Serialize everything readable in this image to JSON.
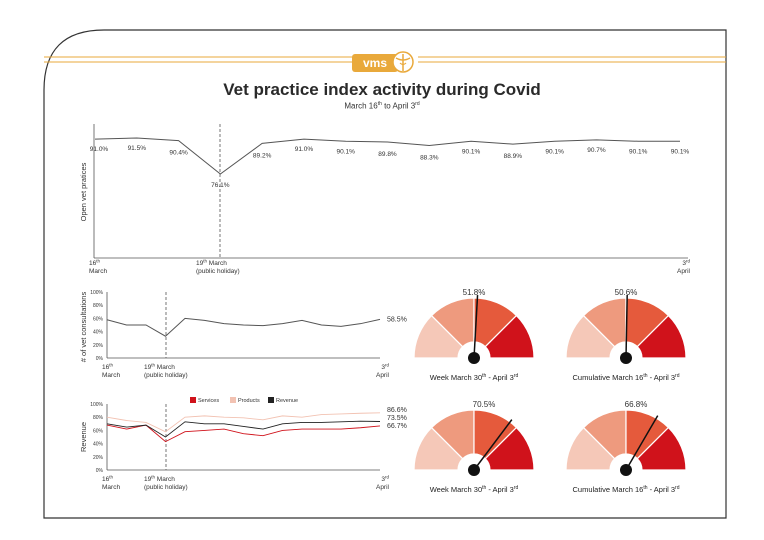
{
  "logo": {
    "text": "vms"
  },
  "title": "Vet practice index activity during Covid",
  "subtitle": {
    "main": "March 16",
    "sup1": "th",
    "mid": " to April 3",
    "sup2": "rd"
  },
  "colors": {
    "gold": "#e9a93b",
    "line": "#555555",
    "services": "#d0121b",
    "products": "#f2c2b2",
    "revenue": "#222222",
    "gauge_light": "#f5c8b8",
    "gauge_mid": "#ee9a7e",
    "gauge_dark": "#e55a3c",
    "gauge_red": "#d0121b"
  },
  "chart_data": [
    {
      "type": "line",
      "ylabel": "Open vet pratices",
      "values": [
        91.0,
        91.5,
        90.4,
        76.1,
        89.2,
        91.0,
        90.1,
        89.8,
        88.3,
        90.1,
        88.9,
        90.1,
        90.7,
        90.1,
        90.1
      ],
      "data_labels": [
        "91.0%",
        "91.5%",
        "90.4%",
        "76.1%",
        "89.2%",
        "91.0%",
        "90.1%",
        "89.8%",
        "88.3%",
        "90.1%",
        "88.9%",
        "90.1%",
        "90.7%",
        "90.1%",
        "90.1%"
      ],
      "ticks": [
        {
          "day": "16",
          "sup": "th",
          "month": "March"
        },
        {
          "day": "19",
          "sup": "th",
          "month": " March",
          "note": "(public holiday)"
        },
        {
          "day": "3",
          "sup": "rd",
          "month": "April"
        }
      ]
    },
    {
      "type": "line",
      "ylabel": "# of vet consultations",
      "yticks": [
        "100%",
        "80%",
        "60%",
        "40%",
        "20%",
        "0%"
      ],
      "ylim": [
        0,
        100
      ],
      "values": [
        58,
        50,
        50,
        33,
        60,
        57,
        52,
        50,
        49,
        52,
        57,
        50,
        48,
        52,
        58.5
      ],
      "end_label": "58.5%"
    },
    {
      "type": "line",
      "ylabel": "Revenue",
      "yticks": [
        "100%",
        "80%",
        "60%",
        "40%",
        "20%",
        "0%"
      ],
      "ylim": [
        0,
        100
      ],
      "legend": [
        "Services",
        "Products",
        "Revenue"
      ],
      "series": [
        {
          "name": "Services",
          "values": [
            68,
            62,
            68,
            43,
            58,
            60,
            62,
            55,
            52,
            60,
            62,
            62,
            62,
            64,
            66.7
          ]
        },
        {
          "name": "Products",
          "values": [
            80,
            75,
            72,
            58,
            80,
            82,
            80,
            79,
            76,
            82,
            80,
            84,
            85,
            86,
            86.6
          ]
        },
        {
          "name": "Revenue",
          "values": [
            70,
            65,
            68,
            50,
            73,
            70,
            70,
            66,
            62,
            70,
            72,
            72,
            73,
            74,
            73.5
          ]
        }
      ],
      "end_labels": [
        "86.6%",
        "73.5%",
        "66.7%"
      ]
    }
  ],
  "gauges": [
    {
      "value": 51.8,
      "label": "51.8%",
      "caption": "Week March 30",
      "cap_sup": "th",
      "caption2": " - April 3",
      "cap_sup2": "rd"
    },
    {
      "value": 50.6,
      "label": "50.6%",
      "caption": "Cumulative March 16",
      "cap_sup": "th",
      "caption2": " - April 3",
      "cap_sup2": "rd"
    },
    {
      "value": 70.5,
      "label": "70.5%",
      "caption": "Week March 30",
      "cap_sup": "th",
      "caption2": " - April 3",
      "cap_sup2": "rd"
    },
    {
      "value": 66.8,
      "label": "66.8%",
      "caption": "Cumulative March 16",
      "cap_sup": "th",
      "caption2": " - April 3",
      "cap_sup2": "rd"
    }
  ]
}
